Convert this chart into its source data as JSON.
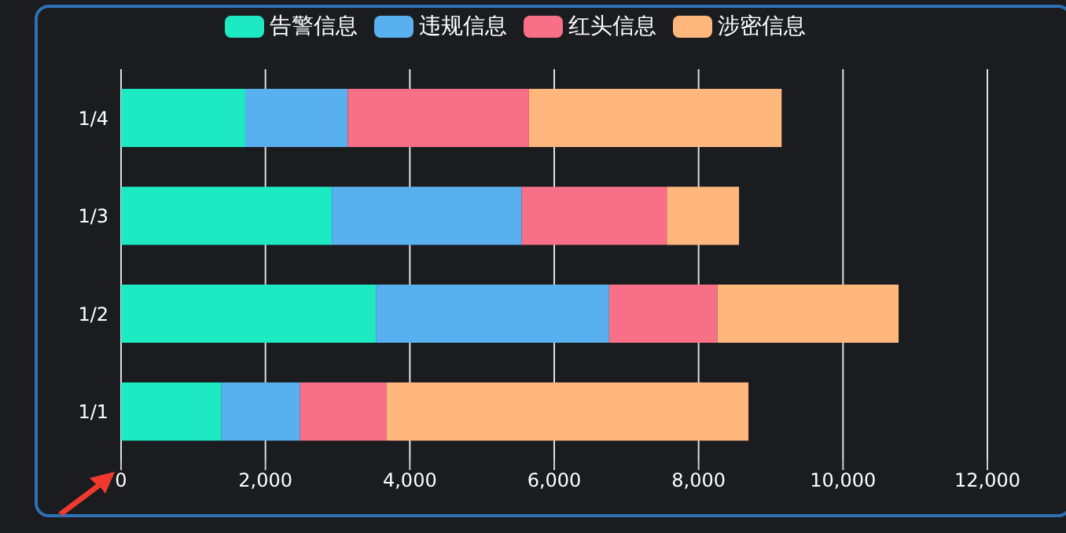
{
  "chart_data": {
    "type": "bar",
    "orientation": "horizontal",
    "stacked": true,
    "categories": [
      "1/4",
      "1/3",
      "1/2",
      "1/1"
    ],
    "series": [
      {
        "name": "告警信息",
        "color": "#1de9c3",
        "values": [
          1720,
          2920,
          3530,
          1390
        ]
      },
      {
        "name": "违规信息",
        "color": "#59b0ef",
        "values": [
          1420,
          2630,
          3230,
          1090
        ]
      },
      {
        "name": "红头信息",
        "color": "#f87087",
        "values": [
          2510,
          2010,
          1500,
          1200
        ]
      },
      {
        "name": "涉密信息",
        "color": "#ffb77c",
        "values": [
          3500,
          1000,
          2510,
          5010
        ]
      }
    ],
    "xlim": [
      0,
      12000
    ],
    "xticks": [
      0,
      {
        "value": 2000,
        "label": "2,000"
      },
      {
        "value": 4000,
        "label": "4,000"
      },
      {
        "value": 6000,
        "label": "6,000"
      },
      {
        "value": 8000,
        "label": "8,000"
      },
      {
        "value": 10000,
        "label": "10,000"
      },
      {
        "value": 12000,
        "label": "12,000"
      }
    ],
    "grid": "x",
    "legend": "top"
  }
}
